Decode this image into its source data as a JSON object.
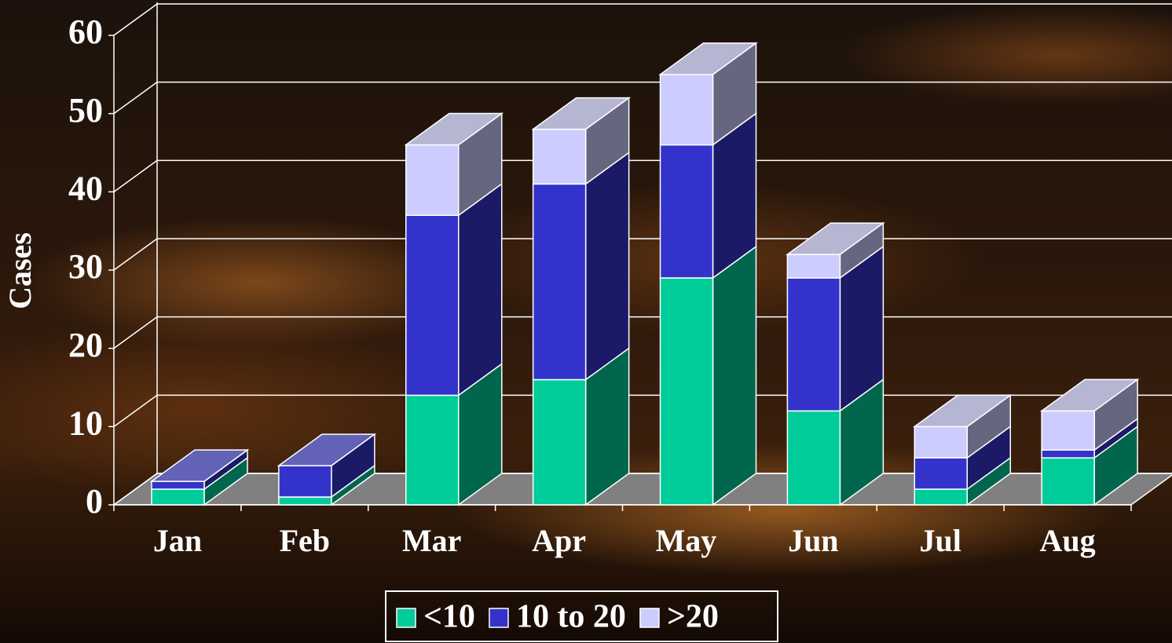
{
  "chart_data": {
    "type": "bar3d_stacked",
    "y_label": "Cases",
    "categories": [
      "Jan",
      "Feb",
      "Mar",
      "Apr",
      "May",
      "Jun",
      "Jul",
      "Aug"
    ],
    "series": [
      {
        "name": "<10",
        "color": "#00cc99",
        "values": [
          2,
          1,
          14,
          16,
          29,
          12,
          2,
          6
        ]
      },
      {
        "name": "10 to 20",
        "color": "#3333cc",
        "values": [
          1,
          4,
          23,
          25,
          17,
          17,
          4,
          1
        ]
      },
      {
        "name": ">20",
        "color": "#ccccff",
        "values": [
          0,
          0,
          9,
          7,
          9,
          3,
          4,
          5
        ]
      }
    ],
    "ylim": [
      0,
      60
    ],
    "yticks": [
      0,
      10,
      20,
      30,
      40,
      50,
      60
    ],
    "grid": true
  }
}
